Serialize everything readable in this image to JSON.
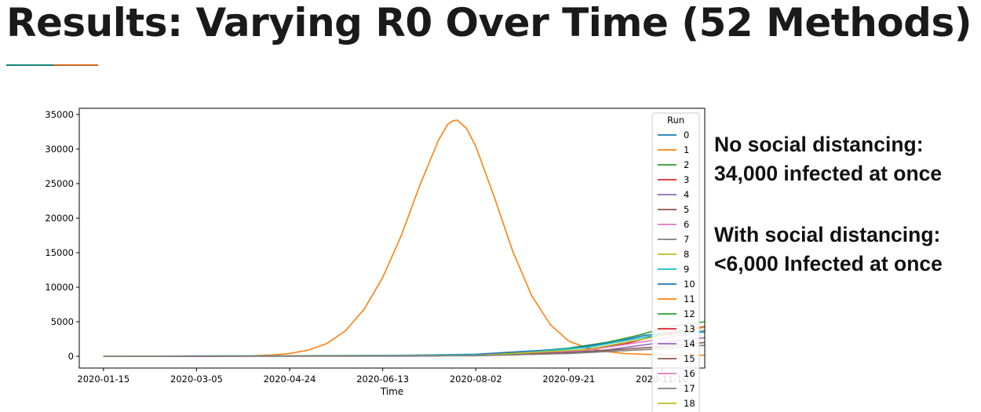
{
  "slide": {
    "title": "Results: Varying R0 Over Time (52 Methods)",
    "accent_colors": [
      "#12847a",
      "#d0631b"
    ]
  },
  "notes": {
    "line1": "No social distancing:",
    "line2": "34,000 infected at once",
    "line3": "With social distancing:",
    "line4": "<6,000 Infected at once"
  },
  "chart_data": {
    "type": "line",
    "xlabel": "Time",
    "ylabel": "",
    "x_tick_labels": [
      "2020-01-15",
      "2020-03-05",
      "2020-04-24",
      "2020-06-13",
      "2020-08-02",
      "2020-09-21",
      "2020-11-10"
    ],
    "y_tick_labels": [
      "0",
      "5000",
      "10000",
      "15000",
      "20000",
      "25000",
      "30000",
      "35000"
    ],
    "xlim": [
      "2020-01-02",
      "2020-12-03"
    ],
    "ylim": [
      -1700,
      35900
    ],
    "x_start": "2020-01-15",
    "x_end": "2020-12-03",
    "legend": {
      "title": "Run",
      "position": "upper-right",
      "entries": [
        {
          "label": "0",
          "color": "#1f77b4"
        },
        {
          "label": "1",
          "color": "#ff7f0e"
        },
        {
          "label": "2",
          "color": "#2ca02c"
        },
        {
          "label": "3",
          "color": "#d62728"
        },
        {
          "label": "4",
          "color": "#9467bd"
        },
        {
          "label": "5",
          "color": "#8c564b"
        },
        {
          "label": "6",
          "color": "#e377c2"
        },
        {
          "label": "7",
          "color": "#7f7f7f"
        },
        {
          "label": "8",
          "color": "#bcbd22"
        },
        {
          "label": "9",
          "color": "#17becf"
        },
        {
          "label": "10",
          "color": "#1f77b4"
        },
        {
          "label": "11",
          "color": "#ff7f0e"
        },
        {
          "label": "12",
          "color": "#2ca02c"
        },
        {
          "label": "13",
          "color": "#d62728"
        },
        {
          "label": "14",
          "color": "#9467bd"
        },
        {
          "label": "15",
          "color": "#8c564b"
        },
        {
          "label": "16",
          "color": "#e377c2"
        },
        {
          "label": "17",
          "color": "#7f7f7f"
        },
        {
          "label": "18",
          "color": "#bcbd22"
        }
      ]
    },
    "series": [
      {
        "name": "1",
        "color": "#ff7f0e",
        "points": [
          [
            "2020-01-15",
            0
          ],
          [
            "2020-02-14",
            0
          ],
          [
            "2020-03-15",
            0
          ],
          [
            "2020-04-04",
            100
          ],
          [
            "2020-04-14",
            200
          ],
          [
            "2020-04-24",
            400
          ],
          [
            "2020-05-04",
            900
          ],
          [
            "2020-05-14",
            1850
          ],
          [
            "2020-05-24",
            3700
          ],
          [
            "2020-06-03",
            6800
          ],
          [
            "2020-06-13",
            11400
          ],
          [
            "2020-06-23",
            17500
          ],
          [
            "2020-07-03",
            24800
          ],
          [
            "2020-07-13",
            31300
          ],
          [
            "2020-07-18",
            33600
          ],
          [
            "2020-07-21",
            34100
          ],
          [
            "2020-07-23",
            34200
          ],
          [
            "2020-07-28",
            33000
          ],
          [
            "2020-08-02",
            30400
          ],
          [
            "2020-08-12",
            23000
          ],
          [
            "2020-08-22",
            15100
          ],
          [
            "2020-09-01",
            8800
          ],
          [
            "2020-09-11",
            4600
          ],
          [
            "2020-09-21",
            2200
          ],
          [
            "2020-10-01",
            1200
          ],
          [
            "2020-10-11",
            700
          ],
          [
            "2020-10-21",
            400
          ],
          [
            "2020-11-10",
            200
          ],
          [
            "2020-12-03",
            150
          ]
        ]
      },
      {
        "name": "2",
        "color": "#2ca02c",
        "points": [
          [
            "2020-01-15",
            0
          ],
          [
            "2020-06-01",
            50
          ],
          [
            "2020-08-02",
            250
          ],
          [
            "2020-09-01",
            700
          ],
          [
            "2020-09-21",
            1200
          ],
          [
            "2020-10-11",
            2000
          ],
          [
            "2020-10-26",
            2900
          ],
          [
            "2020-11-05",
            3600
          ],
          [
            "2020-11-10",
            4100
          ],
          [
            "2020-11-20",
            4500
          ],
          [
            "2020-12-03",
            5000
          ]
        ]
      },
      {
        "name": "0",
        "color": "#1f77b4",
        "points": [
          [
            "2020-01-15",
            0
          ],
          [
            "2020-06-01",
            60
          ],
          [
            "2020-08-02",
            300
          ],
          [
            "2020-09-21",
            1100
          ],
          [
            "2020-10-16",
            2100
          ],
          [
            "2020-10-31",
            3000
          ],
          [
            "2020-11-10",
            3300
          ],
          [
            "2020-12-03",
            3500
          ]
        ]
      },
      {
        "name": "3",
        "color": "#d62728",
        "points": [
          [
            "2020-01-15",
            0
          ],
          [
            "2020-07-01",
            40
          ],
          [
            "2020-08-22",
            200
          ],
          [
            "2020-09-21",
            700
          ],
          [
            "2020-10-21",
            1800
          ],
          [
            "2020-11-10",
            3200
          ],
          [
            "2020-12-03",
            4300
          ]
        ]
      },
      {
        "name": "4",
        "color": "#9467bd",
        "points": [
          [
            "2020-01-15",
            0
          ],
          [
            "2020-07-01",
            30
          ],
          [
            "2020-09-01",
            300
          ],
          [
            "2020-10-11",
            900
          ],
          [
            "2020-11-10",
            2000
          ],
          [
            "2020-12-03",
            2700
          ]
        ]
      },
      {
        "name": "5",
        "color": "#8c564b",
        "points": [
          [
            "2020-01-15",
            0
          ],
          [
            "2020-08-02",
            100
          ],
          [
            "2020-09-21",
            500
          ],
          [
            "2020-11-10",
            1400
          ],
          [
            "2020-12-03",
            2000
          ]
        ]
      },
      {
        "name": "6",
        "color": "#e377c2",
        "points": [
          [
            "2020-01-15",
            0
          ],
          [
            "2020-08-02",
            150
          ],
          [
            "2020-10-01",
            900
          ],
          [
            "2020-11-10",
            2500
          ],
          [
            "2020-12-03",
            3800
          ]
        ]
      },
      {
        "name": "9",
        "color": "#17becf",
        "points": [
          [
            "2020-01-15",
            0
          ],
          [
            "2020-08-12",
            200
          ],
          [
            "2020-10-01",
            1300
          ],
          [
            "2020-11-01",
            2800
          ],
          [
            "2020-11-10",
            3100
          ],
          [
            "2020-12-03",
            3600
          ]
        ]
      },
      {
        "name": "8",
        "color": "#bcbd22",
        "points": [
          [
            "2020-01-15",
            0
          ],
          [
            "2020-08-02",
            120
          ],
          [
            "2020-10-01",
            1000
          ],
          [
            "2020-11-10",
            3000
          ],
          [
            "2020-12-03",
            4200
          ]
        ]
      },
      {
        "name": "7",
        "color": "#7f7f7f",
        "points": [
          [
            "2020-01-15",
            0
          ],
          [
            "2020-08-02",
            80
          ],
          [
            "2020-09-21",
            400
          ],
          [
            "2020-11-10",
            1100
          ],
          [
            "2020-12-03",
            1600
          ]
        ]
      }
    ]
  }
}
